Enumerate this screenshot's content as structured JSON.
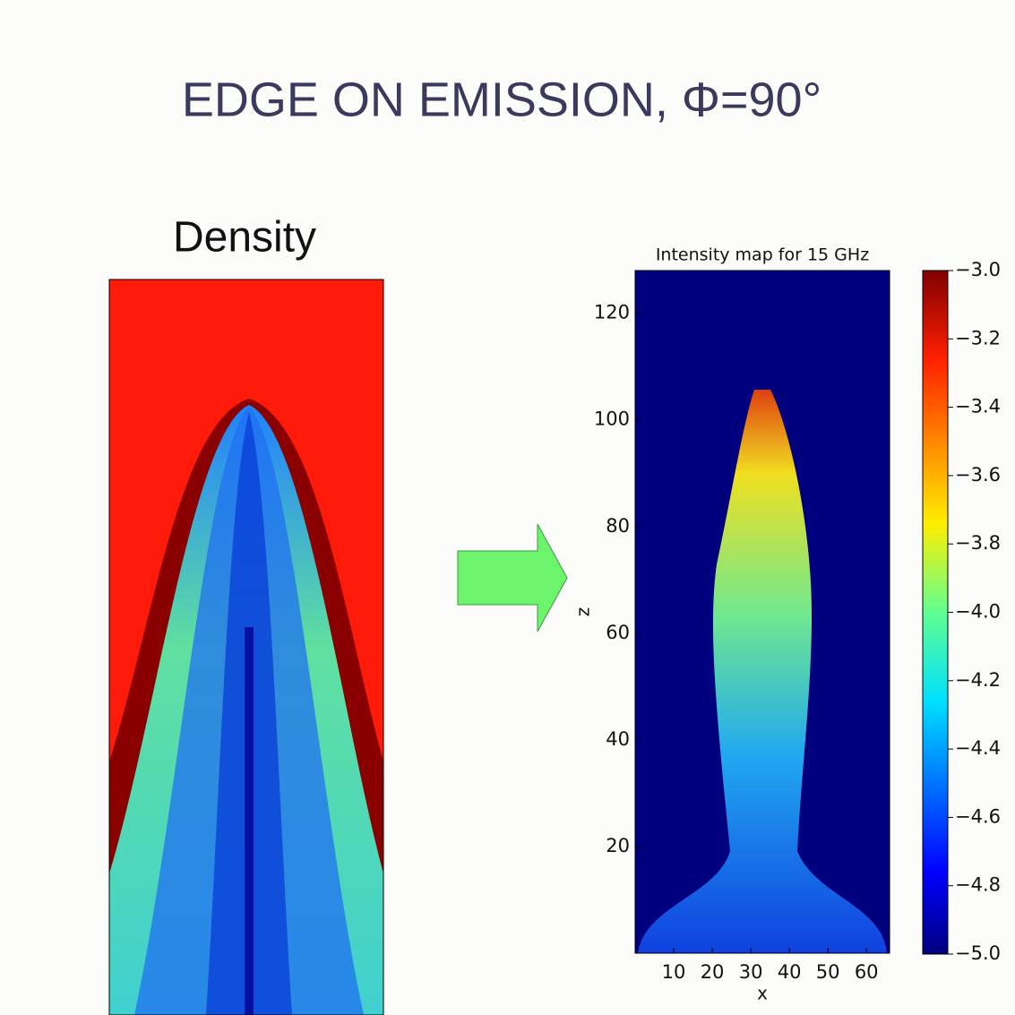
{
  "slide": {
    "title": "EDGE ON EMISSION, Φ=90°",
    "left_label": "Density"
  },
  "chart_data": {
    "type": "heatmap",
    "title": "Intensity map for 15 GHz",
    "xlabel": "x",
    "ylabel": "z",
    "xlim": [
      0,
      66
    ],
    "ylim": [
      0,
      128
    ],
    "xticks": [
      10,
      20,
      30,
      40,
      50,
      60
    ],
    "yticks": [
      20,
      40,
      60,
      80,
      100,
      120
    ],
    "colorbar": {
      "lim": [
        -5.0,
        -3.0
      ],
      "ticks": [
        {
          "value": -3.0,
          "label": "−3.0"
        },
        {
          "value": -3.2,
          "label": "−3.2"
        },
        {
          "value": -3.4,
          "label": "−3.4"
        },
        {
          "value": -3.6,
          "label": "−3.6"
        },
        {
          "value": -3.8,
          "label": "−3.8"
        },
        {
          "value": -4.0,
          "label": "−4.0"
        },
        {
          "value": -4.2,
          "label": "−4.2"
        },
        {
          "value": -4.4,
          "label": "−4.4"
        },
        {
          "value": -4.6,
          "label": "−4.6"
        },
        {
          "value": -4.8,
          "label": "−4.8"
        },
        {
          "value": -5.0,
          "label": "−5.0"
        }
      ]
    }
  }
}
